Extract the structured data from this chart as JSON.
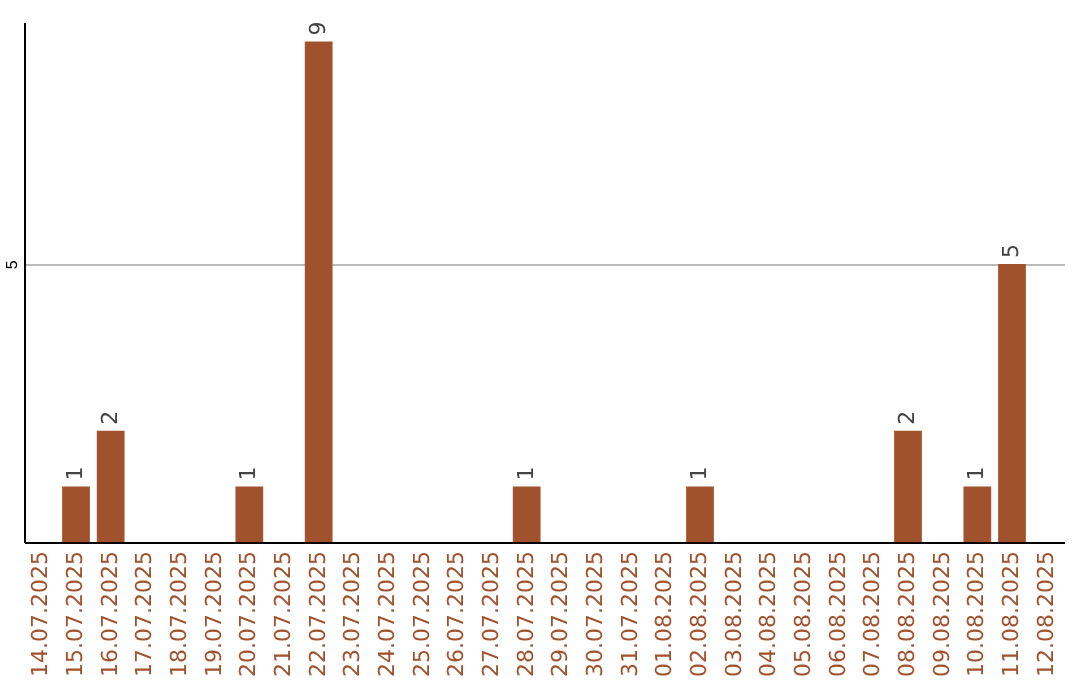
{
  "chart_data": {
    "type": "bar",
    "categories": [
      "14.07.2025",
      "15.07.2025",
      "16.07.2025",
      "17.07.2025",
      "18.07.2025",
      "19.07.2025",
      "20.07.2025",
      "21.07.2025",
      "22.07.2025",
      "23.07.2025",
      "24.07.2025",
      "25.07.2025",
      "26.07.2025",
      "27.07.2025",
      "28.07.2025",
      "29.07.2025",
      "30.07.2025",
      "31.07.2025",
      "01.08.2025",
      "02.08.2025",
      "03.08.2025",
      "04.08.2025",
      "05.08.2025",
      "06.08.2025",
      "07.08.2025",
      "08.08.2025",
      "09.08.2025",
      "10.08.2025",
      "11.08.2025",
      "12.08.2025"
    ],
    "values": [
      0,
      1,
      2,
      0,
      0,
      0,
      1,
      0,
      9,
      0,
      0,
      0,
      0,
      0,
      1,
      0,
      0,
      0,
      0,
      1,
      0,
      0,
      0,
      0,
      0,
      2,
      0,
      1,
      5,
      0
    ],
    "value_labels": [
      null,
      "1",
      "2",
      null,
      null,
      null,
      "1",
      null,
      "9",
      null,
      null,
      null,
      null,
      null,
      "1",
      null,
      null,
      null,
      null,
      "1",
      null,
      null,
      null,
      null,
      null,
      "2",
      null,
      "1",
      "5",
      null
    ],
    "color": "#a0522d",
    "ylim": [
      0,
      9.35
    ],
    "yticks": [
      5
    ],
    "grid": "y"
  }
}
